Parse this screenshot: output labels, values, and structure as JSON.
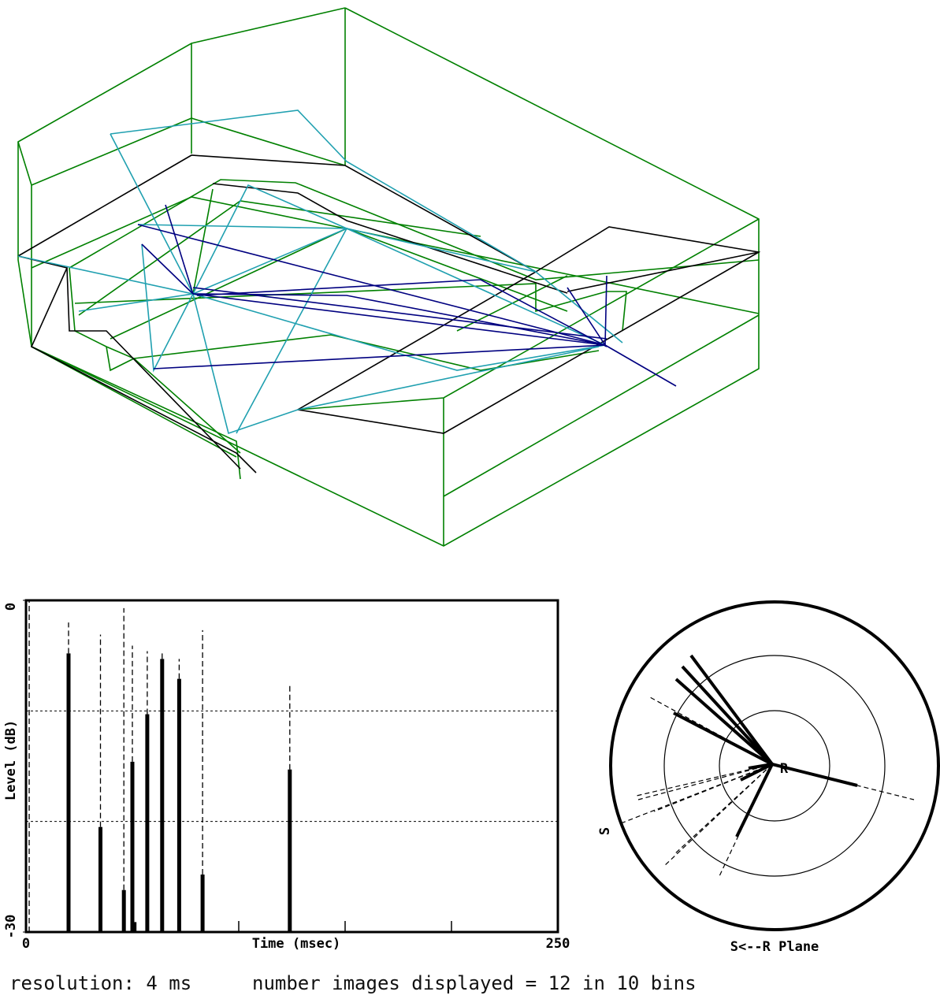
{
  "echogram": {
    "y_label": "Level (dB)",
    "x_label": "Time (msec)",
    "xlim": [
      0,
      250
    ],
    "ylim": [
      -30,
      0
    ],
    "xticks": [
      0,
      250
    ],
    "minor_xticks": [
      50,
      100,
      150,
      200
    ],
    "yticks": [
      -30,
      0
    ],
    "ygrid": [
      -20,
      -10
    ],
    "times": [
      1.5,
      20,
      35,
      46,
      50,
      51,
      57,
      64,
      72,
      83,
      124
    ],
    "levels": [
      null,
      -4.8,
      -20.5,
      -26.2,
      -14.6,
      -29.1,
      -10.3,
      -5.3,
      -7.1,
      -24.8,
      -15.3
    ],
    "peaks": [
      0,
      -2,
      -3.1,
      -0.7,
      -4.1,
      null,
      -4.6,
      -4.7,
      -5.3,
      -2.7,
      -7.7
    ]
  },
  "polar": {
    "title": "S<--R Plane",
    "source_label": "S",
    "receiver_label": "R"
  },
  "status": {
    "resolution": "resolution: 4 ms",
    "images": "number images displayed = 12 in 10 bins"
  }
}
